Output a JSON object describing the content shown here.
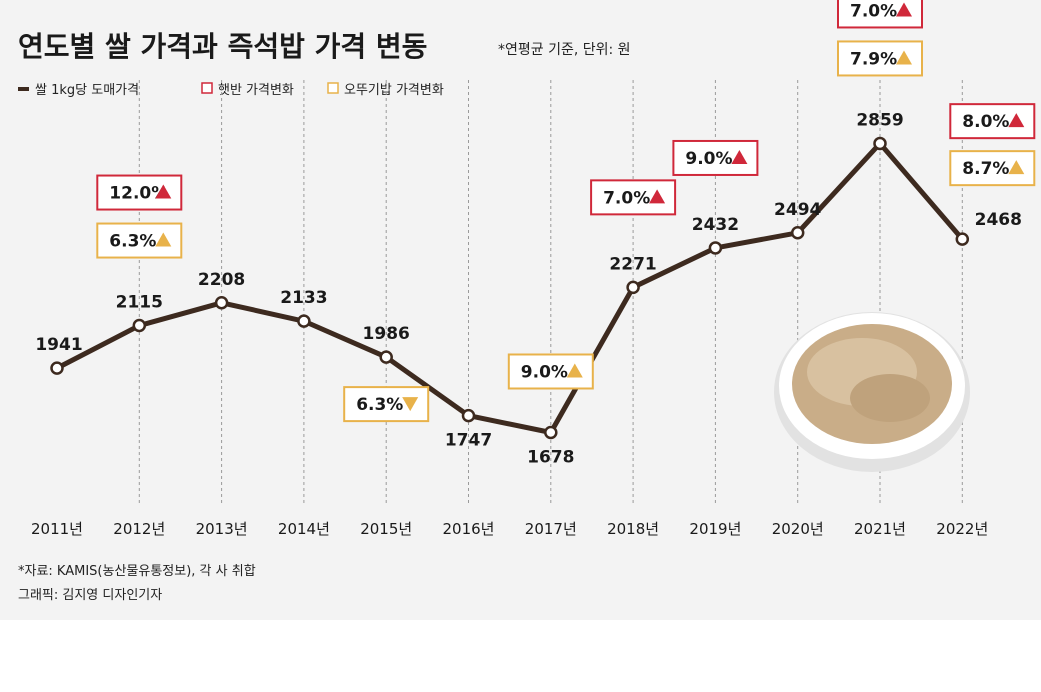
{
  "chart_data": {
    "type": "line",
    "title": "연도별 쌀 가격과 즉석밥 가격 변동",
    "subtitle": "*연평균 기준, 단위: 원",
    "categories": [
      "2011년",
      "2012년",
      "2013년",
      "2014년",
      "2015년",
      "2016년",
      "2017년",
      "2018년",
      "2019년",
      "2020년",
      "2021년",
      "2022년"
    ],
    "series": [
      {
        "name": "쌀 1kg당 도매가격",
        "values": [
          1941,
          2115,
          2208,
          2133,
          1986,
          1747,
          1678,
          2271,
          2432,
          2494,
          2859,
          2468
        ]
      }
    ],
    "ylim": [
      1300,
      3200
    ],
    "xlabel": "",
    "ylabel": "",
    "grid": "vertical dashed",
    "legend_position": "top-left",
    "legend": [
      {
        "label": "쌀 1kg당 도매가격",
        "marker": "line"
      },
      {
        "label": "햇반 가격변화",
        "marker": "red-box"
      },
      {
        "label": "오뚜기밥 가격변화",
        "marker": "yellow-box"
      }
    ],
    "annotations": [
      {
        "category": "2012년",
        "product": "햇반",
        "label": "12.0%",
        "direction": "up"
      },
      {
        "category": "2012년",
        "product": "오뚜기밥",
        "label": "6.3%",
        "direction": "up"
      },
      {
        "category": "2015년",
        "product": "오뚜기밥",
        "label": "6.3%",
        "direction": "down"
      },
      {
        "category": "2017년",
        "product": "오뚜기밥",
        "label": "9.0%",
        "direction": "up"
      },
      {
        "category": "2018년",
        "product": "햇반",
        "label": "7.0%",
        "direction": "up"
      },
      {
        "category": "2019년",
        "product": "햇반",
        "label": "9.0%",
        "direction": "up"
      },
      {
        "category": "2021년",
        "product": "햇반",
        "label": "7.0%",
        "direction": "up"
      },
      {
        "category": "2021년",
        "product": "오뚜기밥",
        "label": "7.9%",
        "direction": "up"
      },
      {
        "category": "2022년",
        "product": "햇반",
        "label": "8.0%",
        "direction": "up"
      },
      {
        "category": "2022년",
        "product": "오뚜기밥",
        "label": "8.7%",
        "direction": "up"
      }
    ]
  },
  "footer": {
    "source": "*자료: KAMIS(농산물유통정보), 각 사 취합",
    "credit": "그래픽: 김지영 디자인기자"
  },
  "colors": {
    "line": "#3d2a1f",
    "red": "#d0283a",
    "yellow": "#e8b24a",
    "background": "#f3f3f3"
  }
}
